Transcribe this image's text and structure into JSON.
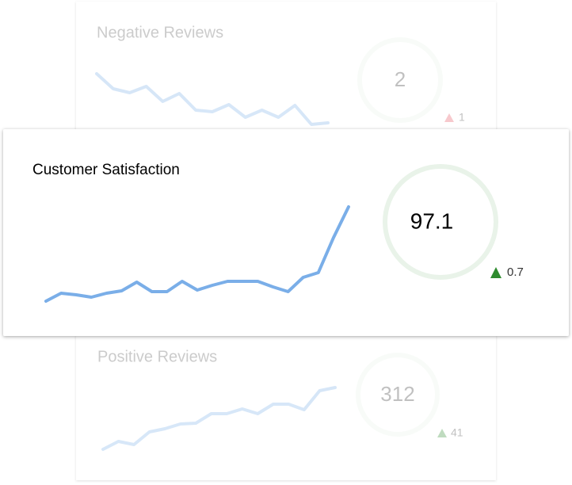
{
  "cards": [
    {
      "title": "Negative Reviews",
      "value": 2,
      "delta": 1,
      "trend": [
        67,
        48,
        43,
        51,
        32,
        42,
        21,
        19,
        28,
        12,
        21,
        12,
        27,
        3,
        5
      ]
    },
    {
      "title": "Customer Satisfaction",
      "value": 97.1,
      "delta": 0.7,
      "trend": [
        10,
        20,
        18,
        15,
        20,
        23,
        34,
        22,
        22,
        35,
        24,
        30,
        35,
        35,
        35,
        28,
        22,
        40,
        46,
        90,
        129
      ]
    },
    {
      "title": "Positive Reviews",
      "value": 312,
      "delta": 41,
      "trend": [
        13,
        23,
        19,
        35,
        39,
        45,
        46,
        58,
        58,
        64,
        58,
        70,
        70,
        63,
        87,
        91
      ]
    }
  ]
}
